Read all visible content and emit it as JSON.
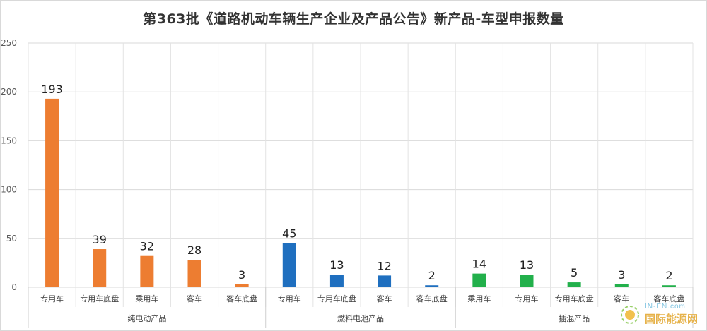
{
  "chart_data": {
    "type": "bar",
    "title": "第363批《道路机动车辆生产企业及产品公告》新产品-车型申报数量",
    "ylim": [
      0,
      250
    ],
    "yticks": [
      0,
      50,
      100,
      150,
      200,
      250
    ],
    "grid": true,
    "groups": [
      {
        "name": "纯电动产品",
        "color": "#ed7d31",
        "categories": [
          "专用车",
          "专用车底盘",
          "乘用车",
          "客车",
          "客车底盘"
        ],
        "values": [
          193,
          39,
          32,
          28,
          3
        ]
      },
      {
        "name": "燃料电池产品",
        "color": "#1f6fbf",
        "categories": [
          "专用车",
          "专用车底盘",
          "客车",
          "客车底盘"
        ],
        "values": [
          45,
          13,
          12,
          2
        ]
      },
      {
        "name": "插混产品",
        "color": "#22b04b",
        "categories": [
          "乘用车",
          "专用车",
          "专用车底盘",
          "客车",
          "客车底盘"
        ],
        "values": [
          14,
          13,
          5,
          3,
          2
        ]
      }
    ]
  },
  "watermark": {
    "top": "IN-EN.com",
    "bottom": "国际能源网",
    "logo_icon": "sun-logo-icon"
  }
}
